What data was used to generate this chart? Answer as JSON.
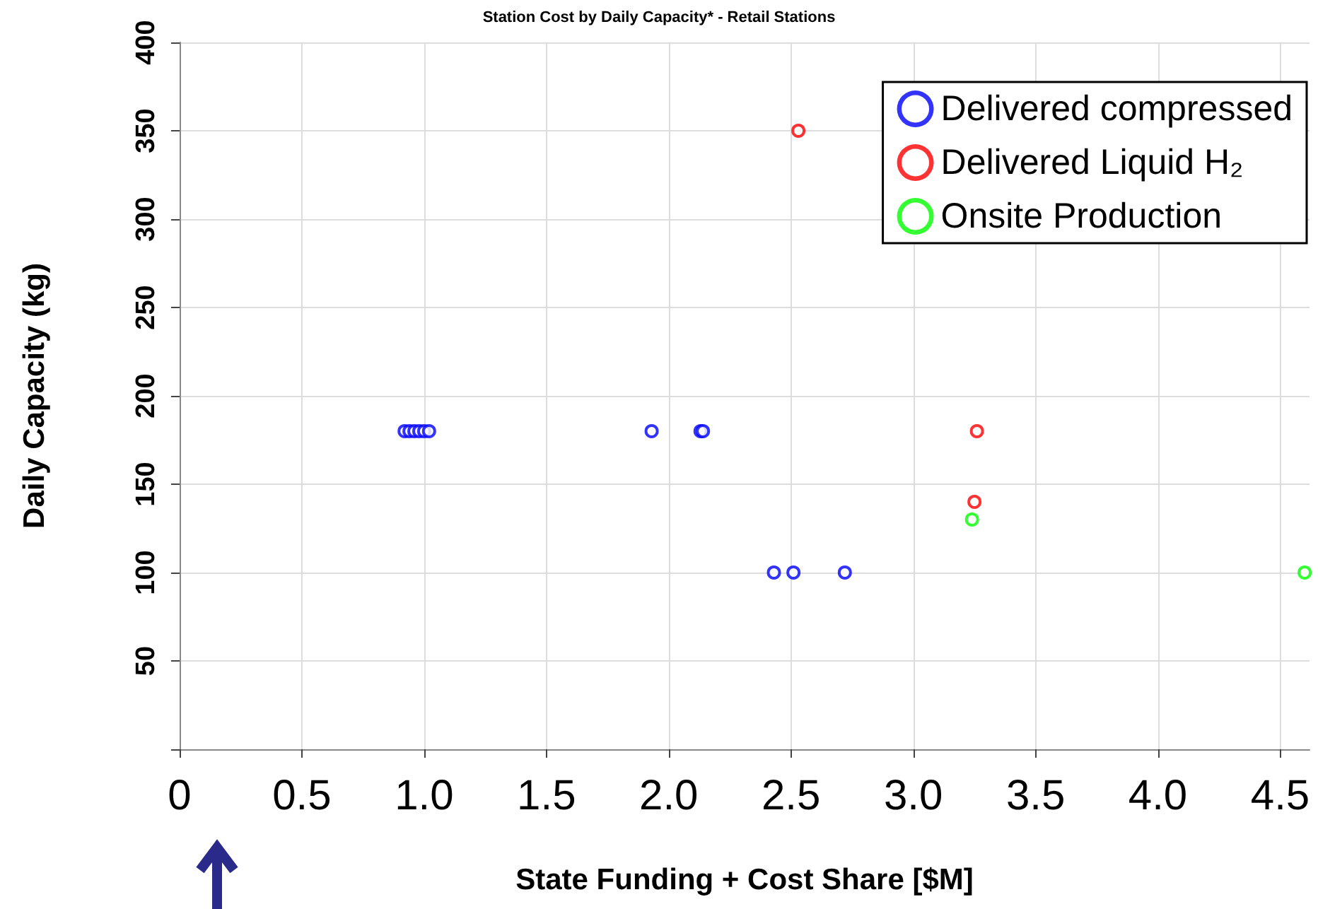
{
  "chart_data": {
    "type": "scatter",
    "title": "Station Cost by Daily Capacity* - Retail Stations",
    "xlabel": "State Funding + Cost Share [$M]",
    "ylabel": "Daily Capacity (kg)",
    "xlim": [
      0,
      4.62
    ],
    "xticks": [
      0,
      {
        "value": 0.5,
        "label": "0.5"
      },
      {
        "value": 1,
        "label": "1.0"
      },
      {
        "value": 1.5,
        "label": "1.5"
      },
      {
        "value": 2,
        "label": "2.0"
      },
      {
        "value": 2.5,
        "label": "2.5"
      },
      {
        "value": 3,
        "label": "3.0"
      },
      {
        "value": 3.5,
        "label": "3.5"
      },
      {
        "value": 4,
        "label": "4.0"
      },
      {
        "value": 4.5,
        "label": "4.5"
      }
    ],
    "ylim": [
      0,
      400
    ],
    "yticks": [
      {
        "value": 0,
        "label": null
      },
      50,
      100,
      150,
      200,
      250,
      300,
      350,
      400
    ],
    "grid": true,
    "legend": "top right",
    "marker": "circle",
    "series": [
      {
        "name": "Delivered compressed",
        "color": "#0000ff",
        "x": [
          0.92,
          0.94,
          0.96,
          0.98,
          1.0,
          1.02,
          1.93,
          2.13,
          2.14,
          2.43,
          2.51,
          2.72
        ],
        "values": [
          180,
          180,
          180,
          180,
          180,
          180,
          180,
          180,
          180,
          100,
          100,
          100
        ]
      },
      {
        "name": "Delivered Liquid H₂",
        "color": "#ff0000",
        "x": [
          2.53,
          3.26,
          3.25
        ],
        "values": [
          350,
          180,
          140
        ]
      },
      {
        "name": "Onsite Production",
        "color": "#00ff00",
        "x": [
          3.24,
          4.6
        ],
        "values": [
          130,
          100
        ]
      }
    ]
  }
}
